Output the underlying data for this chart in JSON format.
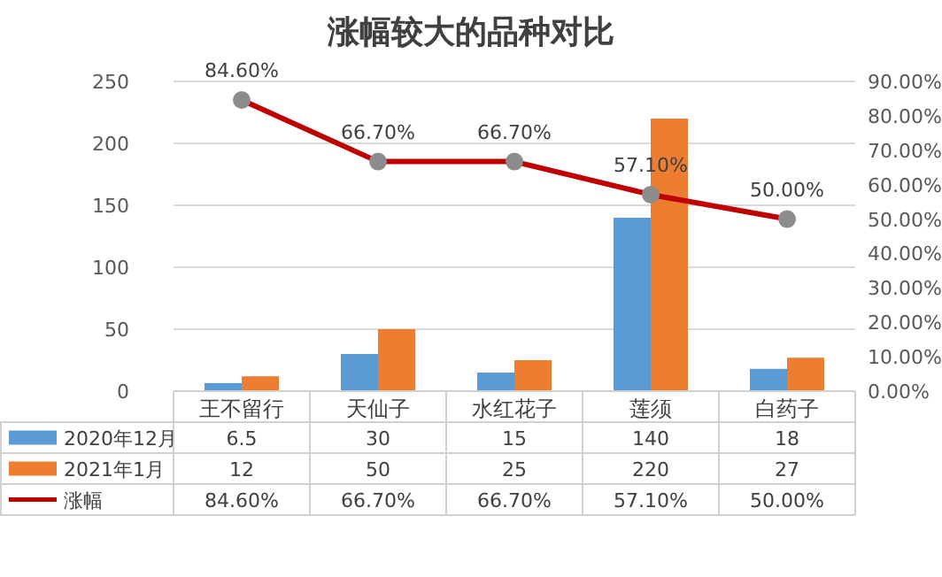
{
  "chart_data": {
    "type": "bar",
    "title": "涨幅较大的品种对比",
    "categories": [
      "王不留行",
      "天仙子",
      "水红花子",
      "莲须",
      "白药子"
    ],
    "series": [
      {
        "name": "2020年12月",
        "color": "#5b9bd5",
        "values": [
          6.5,
          30,
          15,
          140,
          18
        ]
      },
      {
        "name": "2021年1月",
        "color": "#ed7d31",
        "values": [
          12,
          50,
          25,
          220,
          27
        ]
      },
      {
        "name": "涨幅",
        "type": "line",
        "axis": "y2",
        "color": "#c00000",
        "marker": "circle",
        "values": [
          84.6,
          66.7,
          66.7,
          57.1,
          50.0
        ],
        "value_labels": [
          "84.60%",
          "66.70%",
          "66.70%",
          "57.10%",
          "50.00%"
        ]
      }
    ],
    "ylim": [
      0,
      250
    ],
    "yticks": [
      0,
      50,
      100,
      150,
      200,
      250
    ],
    "y2lim": [
      0,
      90
    ],
    "y2ticks": [
      {
        "value": 0,
        "label": "0.00%"
      },
      {
        "value": 10,
        "label": "10.00%"
      },
      {
        "value": 20,
        "label": "20.00%"
      },
      {
        "value": 30,
        "label": "30.00%"
      },
      {
        "value": 40,
        "label": "40.00%"
      },
      {
        "value": 50,
        "label": "50.00%"
      },
      {
        "value": 60,
        "label": "60.00%"
      },
      {
        "value": 70,
        "label": "70.00%"
      },
      {
        "value": 80,
        "label": "80.00%"
      },
      {
        "value": 90,
        "label": "90.00%"
      }
    ],
    "grid": "y",
    "legend": "bottom",
    "data_labels": true
  }
}
